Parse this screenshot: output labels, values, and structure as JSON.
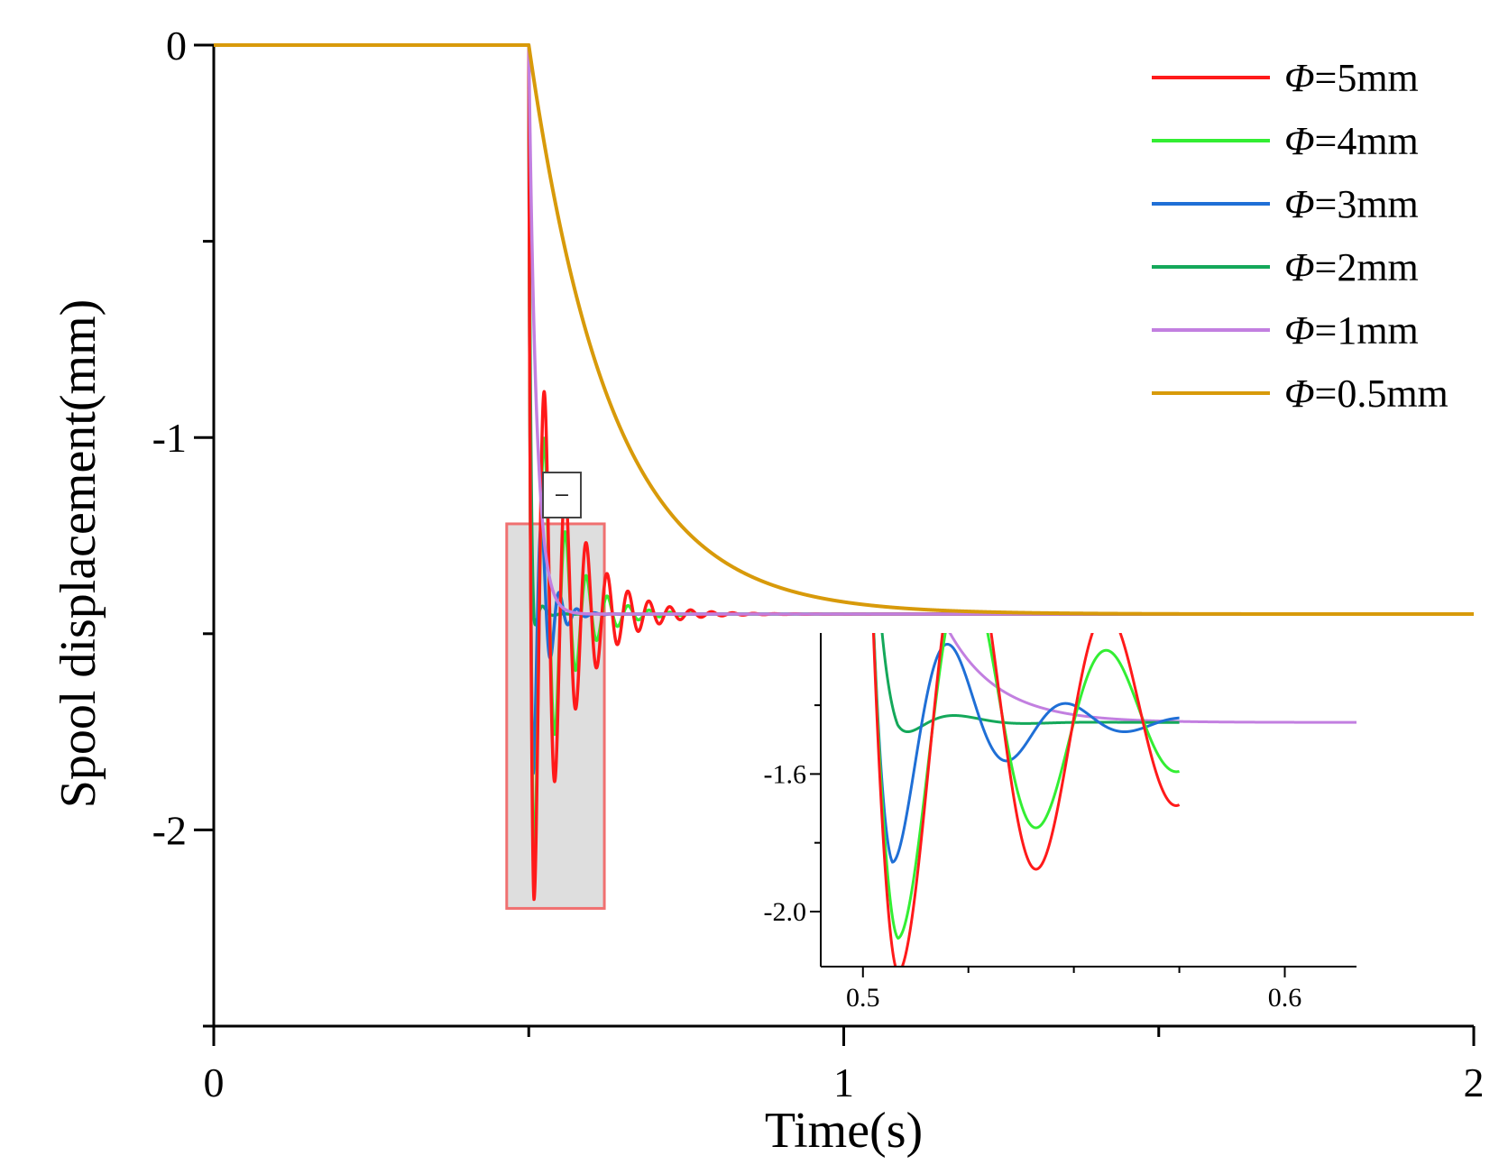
{
  "chart_data": [
    {
      "id": "main",
      "type": "line",
      "xlabel": "Time(s)",
      "ylabel": "Spool displacement(mm)",
      "xlim": [
        0,
        2
      ],
      "ylim": [
        -2.5,
        0
      ],
      "xticks": [
        {
          "value": 0,
          "label": "0"
        },
        {
          "value": 1,
          "label": "1"
        },
        {
          "value": 2,
          "label": "2"
        }
      ],
      "yticks": [
        {
          "value": 0,
          "label": "0"
        },
        {
          "value": -1,
          "label": "-1"
        },
        {
          "value": -2,
          "label": "-2"
        }
      ],
      "step_time": 0.5,
      "steady_value": -1.45,
      "series": [
        {
          "name": "Φ=5mm",
          "label": "=5mm",
          "color": "#ff1a1a",
          "tau": 0.002,
          "overshoot_peak": -2.2,
          "zeta": 0.09,
          "omega": 190
        },
        {
          "name": "Φ=4mm",
          "label": "=4mm",
          "color": "#33ee33",
          "tau": 0.002,
          "overshoot_peak": -2.1,
          "zeta": 0.12,
          "omega": 190
        },
        {
          "name": "Φ=3mm",
          "label": "=3mm",
          "color": "#1f6fd6",
          "tau": 0.002,
          "overshoot_peak": -1.9,
          "zeta": 0.22,
          "omega": 230
        },
        {
          "name": "Φ=2mm",
          "label": "=2mm",
          "color": "#14a85a",
          "tau": 0.003,
          "overshoot_peak": -1.55,
          "zeta": 0.5,
          "omega": 220
        },
        {
          "name": "Φ=1mm",
          "label": "=1mm",
          "color": "#c27fe0",
          "tau": 0.012
        },
        {
          "name": "Φ=0.5mm",
          "label": "=0.5mm",
          "color": "#d89a0a",
          "tau": 0.13
        }
      ],
      "legend": {
        "position": "top-right",
        "symbol": "Φ"
      },
      "zoom_region": {
        "x": [
          0.465,
          0.62
        ],
        "y": [
          -2.2,
          -1.22
        ]
      },
      "collapse_button": "−"
    },
    {
      "id": "inset",
      "type": "line",
      "xlim": [
        0.49,
        0.617
      ],
      "ylim": [
        -2.16,
        -1.19
      ],
      "xticks": [
        {
          "value": 0.5,
          "label": "0.5"
        },
        {
          "value": 0.6,
          "label": "0.6"
        }
      ],
      "yticks": [
        {
          "value": -1.6,
          "label": "-1.6"
        },
        {
          "value": -2.0,
          "label": "-2.0"
        }
      ]
    }
  ]
}
